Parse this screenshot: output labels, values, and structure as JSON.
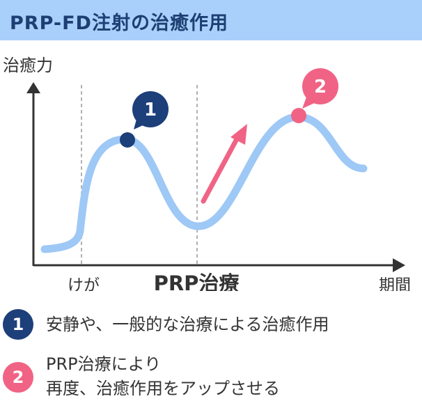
{
  "header": {
    "title": "PRP-FD注射の治癒作用"
  },
  "diagram": {
    "y_axis_label": "治癒力",
    "x_axis_label": "期間",
    "phase_injury_label": "けが",
    "phase_treatment_label": "PRP治療",
    "marker_1": "1",
    "marker_2": "2"
  },
  "legend": {
    "items": [
      {
        "badge": "1",
        "lines": [
          "安静や、一般的な治療による治癒作用"
        ]
      },
      {
        "badge": "2",
        "lines": [
          "PRP治療により",
          "再度、治癒作用をアップさせる"
        ]
      }
    ]
  },
  "colors": {
    "header_bg": "#a9d0fb",
    "header_text": "#1d3f73",
    "curve": "#9ec8f5",
    "navy": "#1d3f7a",
    "pink": "#f06384",
    "axis": "#333333"
  }
}
